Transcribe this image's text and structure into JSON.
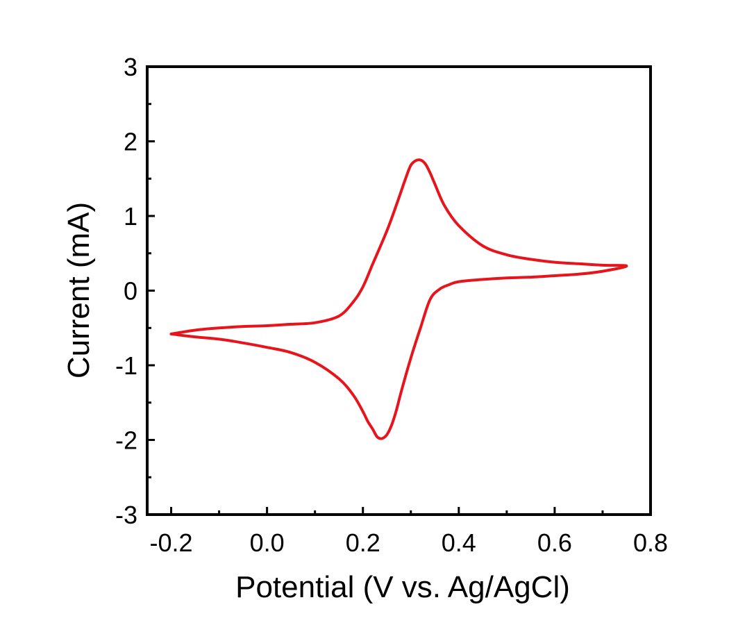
{
  "chart_data": {
    "type": "line",
    "title": "",
    "xlabel": "Potential (V vs. Ag/AgCl)",
    "ylabel": "Current (mA)",
    "xlim": [
      -0.25,
      0.8
    ],
    "ylim": [
      -3,
      3
    ],
    "x_ticks": [
      -0.2,
      0.0,
      0.2,
      0.4,
      0.6,
      0.8
    ],
    "x_tick_labels": [
      "-0.2",
      "0.0",
      "0.2",
      "0.4",
      "0.6",
      "0.8"
    ],
    "y_ticks": [
      -3,
      -2,
      -1,
      0,
      1,
      2,
      3
    ],
    "y_tick_labels": [
      "-3",
      "-2",
      "-1",
      "0",
      "1",
      "2",
      "3"
    ],
    "grid": false,
    "legend": "none",
    "series_color": "#e8141b",
    "series": [
      {
        "x": [
          -0.2,
          -0.15,
          -0.1,
          -0.05,
          0.0,
          0.05,
          0.1,
          0.15,
          0.18,
          0.2,
          0.22,
          0.25,
          0.27,
          0.29,
          0.3,
          0.31,
          0.32,
          0.33,
          0.34,
          0.35,
          0.37,
          0.4,
          0.45,
          0.5,
          0.55,
          0.6,
          0.65,
          0.7,
          0.75,
          0.7,
          0.65,
          0.6,
          0.55,
          0.5,
          0.45,
          0.4,
          0.38,
          0.36,
          0.34,
          0.32,
          0.3,
          0.28,
          0.27,
          0.26,
          0.25,
          0.24,
          0.23,
          0.22,
          0.21,
          0.2,
          0.18,
          0.15,
          0.1,
          0.05,
          0.0,
          -0.05,
          -0.1,
          -0.15,
          -0.2
        ],
        "y": [
          -0.58,
          -0.53,
          -0.5,
          -0.48,
          -0.47,
          -0.45,
          -0.43,
          -0.34,
          -0.15,
          0.05,
          0.35,
          0.8,
          1.15,
          1.52,
          1.68,
          1.74,
          1.75,
          1.7,
          1.58,
          1.43,
          1.14,
          0.87,
          0.6,
          0.48,
          0.42,
          0.38,
          0.36,
          0.34,
          0.33,
          0.26,
          0.22,
          0.2,
          0.18,
          0.17,
          0.15,
          0.12,
          0.08,
          0.02,
          -0.12,
          -0.5,
          -0.9,
          -1.35,
          -1.6,
          -1.8,
          -1.93,
          -1.98,
          -1.96,
          -1.85,
          -1.75,
          -1.62,
          -1.4,
          -1.18,
          -0.96,
          -0.83,
          -0.76,
          -0.7,
          -0.65,
          -0.62,
          -0.58
        ]
      }
    ]
  }
}
